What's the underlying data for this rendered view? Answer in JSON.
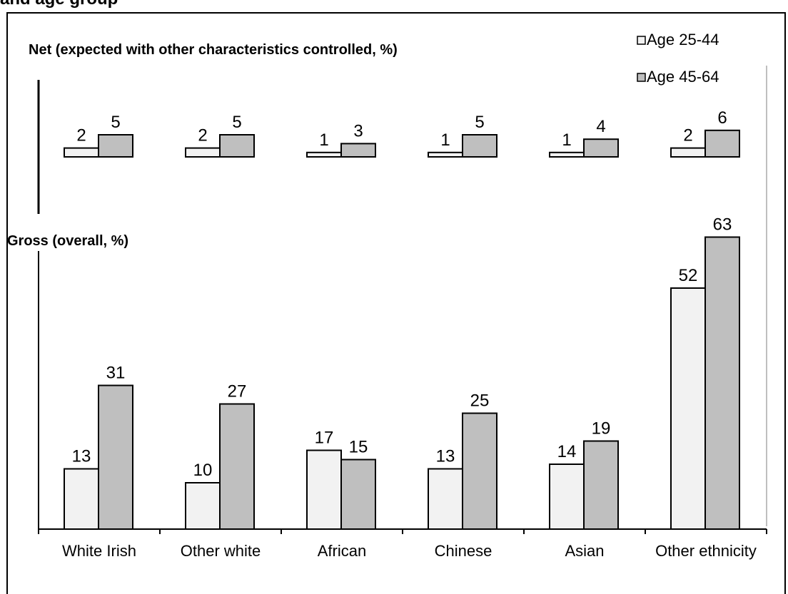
{
  "header": {
    "partial_title": "and age group"
  },
  "chart_data": [
    {
      "type": "bar",
      "title": "Net (expected with other characteristics controlled, %)",
      "categories": [
        "White Irish",
        "Other white",
        "African",
        "Chinese",
        "Asian",
        "Other ethnicity"
      ],
      "series": [
        {
          "name": "Age 25-44",
          "values": [
            2,
            2,
            1,
            1,
            1,
            2
          ],
          "color": "#f2f2f2"
        },
        {
          "name": "Age 45-64",
          "values": [
            5,
            5,
            3,
            5,
            4,
            6
          ],
          "color": "#bfbfbf"
        }
      ],
      "legend": "top-right"
    },
    {
      "type": "bar",
      "title": "Gross (overall, %)",
      "categories": [
        "White Irish",
        "Other white",
        "African",
        "Chinese",
        "Asian",
        "Other ethnicity"
      ],
      "series": [
        {
          "name": "Age 25-44",
          "values": [
            13,
            10,
            17,
            13,
            14,
            52
          ],
          "color": "#f2f2f2"
        },
        {
          "name": "Age 45-64",
          "values": [
            31,
            27,
            15,
            25,
            19,
            63
          ],
          "color": "#bfbfbf"
        }
      ],
      "ylim": [
        0,
        63
      ]
    }
  ]
}
